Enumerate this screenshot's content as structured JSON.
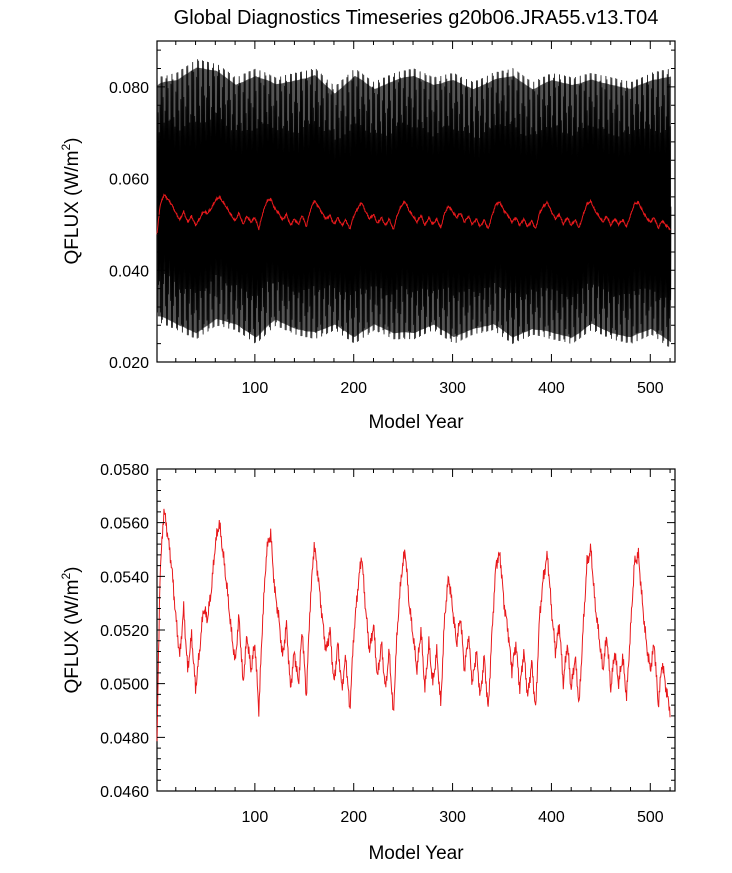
{
  "chart_data": [
    {
      "type": "line",
      "title": "Global Diagnostics Timeseries g20b06.JRA55.v13.T04",
      "xlabel": "Model Year",
      "ylabel": "QFLUX (W/m",
      "ylabel_superscript": "2",
      "ylabel_suffix": ")",
      "xlim": [
        1,
        525
      ],
      "ylim": [
        0.02,
        0.09
      ],
      "xticks": [
        100,
        200,
        300,
        400,
        500
      ],
      "xtick_labels": [
        "100",
        "200",
        "300",
        "400",
        "500"
      ],
      "yticks": [
        0.02,
        0.04,
        0.06,
        0.08
      ],
      "ytick_labels": [
        "0.020",
        "0.040",
        "0.060",
        "0.080"
      ],
      "series": [
        {
          "color": "#000000",
          "style": "monthly values, dense oscillation",
          "x": [
            1,
            21,
            41,
            61,
            81,
            101,
            121,
            141,
            161,
            181,
            201,
            221,
            241,
            261,
            281,
            301,
            321,
            341,
            361,
            381,
            401,
            421,
            441,
            461,
            481,
            501,
            521
          ],
          "envelope_max": [
            0.082,
            0.083,
            0.086,
            0.085,
            0.082,
            0.084,
            0.082,
            0.083,
            0.084,
            0.08,
            0.084,
            0.081,
            0.083,
            0.084,
            0.082,
            0.083,
            0.081,
            0.083,
            0.084,
            0.081,
            0.083,
            0.082,
            0.083,
            0.082,
            0.081,
            0.083,
            0.084
          ],
          "envelope_min": [
            0.029,
            0.027,
            0.025,
            0.028,
            0.027,
            0.024,
            0.028,
            0.026,
            0.025,
            0.027,
            0.024,
            0.027,
            0.025,
            0.025,
            0.027,
            0.024,
            0.026,
            0.027,
            0.024,
            0.026,
            0.025,
            0.024,
            0.027,
            0.025,
            0.024,
            0.026,
            0.023
          ]
        },
        {
          "color": "#e8191c",
          "style": "annual mean",
          "x": [
            1,
            4,
            8,
            12,
            16,
            20,
            24,
            28,
            32,
            36,
            40,
            44,
            48,
            52,
            56,
            60,
            64,
            68,
            72,
            76,
            80,
            84,
            88,
            92,
            96,
            100,
            104,
            108,
            112,
            116,
            120,
            124,
            128,
            132,
            136,
            140,
            144,
            148,
            152,
            156,
            160,
            164,
            168,
            172,
            176,
            180,
            184,
            188,
            192,
            196,
            200,
            204,
            208,
            212,
            216,
            220,
            224,
            228,
            232,
            236,
            240,
            244,
            248,
            252,
            256,
            260,
            264,
            268,
            272,
            276,
            280,
            284,
            288,
            292,
            296,
            300,
            304,
            308,
            312,
            316,
            320,
            324,
            328,
            332,
            336,
            340,
            344,
            348,
            352,
            356,
            360,
            364,
            368,
            372,
            376,
            380,
            384,
            388,
            392,
            396,
            400,
            404,
            408,
            412,
            416,
            420,
            424,
            428,
            432,
            436,
            440,
            444,
            448,
            452,
            456,
            460,
            464,
            468,
            472,
            476,
            480,
            484,
            488,
            492,
            496,
            500,
            504,
            508,
            512,
            516,
            520
          ],
          "y": [
            0.0478,
            0.054,
            0.0565,
            0.0555,
            0.0543,
            0.0525,
            0.051,
            0.0528,
            0.0505,
            0.0518,
            0.0498,
            0.0512,
            0.0528,
            0.0524,
            0.0535,
            0.0552,
            0.056,
            0.0548,
            0.0535,
            0.052,
            0.0508,
            0.0525,
            0.05,
            0.0518,
            0.0505,
            0.0515,
            0.049,
            0.0525,
            0.055,
            0.0556,
            0.0535,
            0.0525,
            0.051,
            0.0522,
            0.0498,
            0.0512,
            0.05,
            0.052,
            0.0495,
            0.053,
            0.0552,
            0.054,
            0.0525,
            0.0512,
            0.052,
            0.05,
            0.0515,
            0.0498,
            0.051,
            0.049,
            0.0518,
            0.0535,
            0.0548,
            0.0528,
            0.0512,
            0.0522,
            0.0502,
            0.0515,
            0.0498,
            0.0512,
            0.0488,
            0.052,
            0.054,
            0.055,
            0.053,
            0.0518,
            0.0505,
            0.052,
            0.0498,
            0.0515,
            0.05,
            0.0512,
            0.0492,
            0.0525,
            0.054,
            0.0528,
            0.0515,
            0.0525,
            0.0505,
            0.0518,
            0.05,
            0.0512,
            0.0495,
            0.051,
            0.049,
            0.052,
            0.0545,
            0.0548,
            0.053,
            0.052,
            0.0505,
            0.0515,
            0.0498,
            0.0512,
            0.0495,
            0.0508,
            0.049,
            0.0525,
            0.054,
            0.0548,
            0.0528,
            0.0512,
            0.0522,
            0.05,
            0.0515,
            0.0498,
            0.051,
            0.0492,
            0.052,
            0.0545,
            0.055,
            0.053,
            0.0518,
            0.0505,
            0.0518,
            0.0498,
            0.0512,
            0.05,
            0.051,
            0.0495,
            0.052,
            0.0545,
            0.0548,
            0.053,
            0.0515,
            0.0505,
            0.0515,
            0.0492,
            0.0508,
            0.0498,
            0.049
          ]
        }
      ]
    },
    {
      "type": "line",
      "title": "",
      "xlabel": "Model Year",
      "ylabel": "QFLUX (W/m",
      "ylabel_superscript": "2",
      "ylabel_suffix": ")",
      "xlim": [
        1,
        525
      ],
      "ylim": [
        0.046,
        0.058
      ],
      "xticks": [
        100,
        200,
        300,
        400,
        500
      ],
      "xtick_labels": [
        "100",
        "200",
        "300",
        "400",
        "500"
      ],
      "yticks": [
        0.046,
        0.048,
        0.05,
        0.052,
        0.054,
        0.056,
        0.058
      ],
      "ytick_labels": [
        "0.0460",
        "0.0480",
        "0.0500",
        "0.0520",
        "0.0540",
        "0.0560",
        "0.0580"
      ],
      "series": [
        {
          "color": "#e8191c",
          "style": "annual mean",
          "x": [
            1,
            4,
            8,
            12,
            16,
            20,
            24,
            28,
            32,
            36,
            40,
            44,
            48,
            52,
            56,
            60,
            64,
            68,
            72,
            76,
            80,
            84,
            88,
            92,
            96,
            100,
            104,
            108,
            112,
            116,
            120,
            124,
            128,
            132,
            136,
            140,
            144,
            148,
            152,
            156,
            160,
            164,
            168,
            172,
            176,
            180,
            184,
            188,
            192,
            196,
            200,
            204,
            208,
            212,
            216,
            220,
            224,
            228,
            232,
            236,
            240,
            244,
            248,
            252,
            256,
            260,
            264,
            268,
            272,
            276,
            280,
            284,
            288,
            292,
            296,
            300,
            304,
            308,
            312,
            316,
            320,
            324,
            328,
            332,
            336,
            340,
            344,
            348,
            352,
            356,
            360,
            364,
            368,
            372,
            376,
            380,
            384,
            388,
            392,
            396,
            400,
            404,
            408,
            412,
            416,
            420,
            424,
            428,
            432,
            436,
            440,
            444,
            448,
            452,
            456,
            460,
            464,
            468,
            472,
            476,
            480,
            484,
            488,
            492,
            496,
            500,
            504,
            508,
            512,
            516,
            520
          ],
          "y": [
            0.0478,
            0.054,
            0.0565,
            0.0555,
            0.0543,
            0.0525,
            0.051,
            0.0528,
            0.0505,
            0.0518,
            0.0498,
            0.0512,
            0.0528,
            0.0524,
            0.0535,
            0.0552,
            0.056,
            0.0548,
            0.0535,
            0.052,
            0.0508,
            0.0525,
            0.05,
            0.0518,
            0.0505,
            0.0515,
            0.049,
            0.0525,
            0.055,
            0.0556,
            0.0535,
            0.0525,
            0.051,
            0.0522,
            0.0498,
            0.0512,
            0.05,
            0.052,
            0.0495,
            0.053,
            0.0552,
            0.054,
            0.0525,
            0.0512,
            0.052,
            0.05,
            0.0515,
            0.0498,
            0.051,
            0.049,
            0.0518,
            0.0535,
            0.0548,
            0.0528,
            0.0512,
            0.0522,
            0.0502,
            0.0515,
            0.0498,
            0.0512,
            0.0488,
            0.052,
            0.054,
            0.055,
            0.053,
            0.0518,
            0.0505,
            0.052,
            0.0498,
            0.0515,
            0.05,
            0.0512,
            0.0492,
            0.0525,
            0.054,
            0.0528,
            0.0515,
            0.0525,
            0.0505,
            0.0518,
            0.05,
            0.0512,
            0.0495,
            0.051,
            0.049,
            0.052,
            0.0545,
            0.0548,
            0.053,
            0.052,
            0.0505,
            0.0515,
            0.0498,
            0.0512,
            0.0495,
            0.0508,
            0.049,
            0.0525,
            0.054,
            0.0548,
            0.0528,
            0.0512,
            0.0522,
            0.05,
            0.0515,
            0.0498,
            0.051,
            0.0492,
            0.052,
            0.0545,
            0.055,
            0.053,
            0.0518,
            0.0505,
            0.0518,
            0.0498,
            0.0512,
            0.05,
            0.051,
            0.0495,
            0.052,
            0.0545,
            0.0548,
            0.053,
            0.0515,
            0.0505,
            0.0515,
            0.0492,
            0.0508,
            0.0498,
            0.049
          ]
        }
      ]
    }
  ]
}
